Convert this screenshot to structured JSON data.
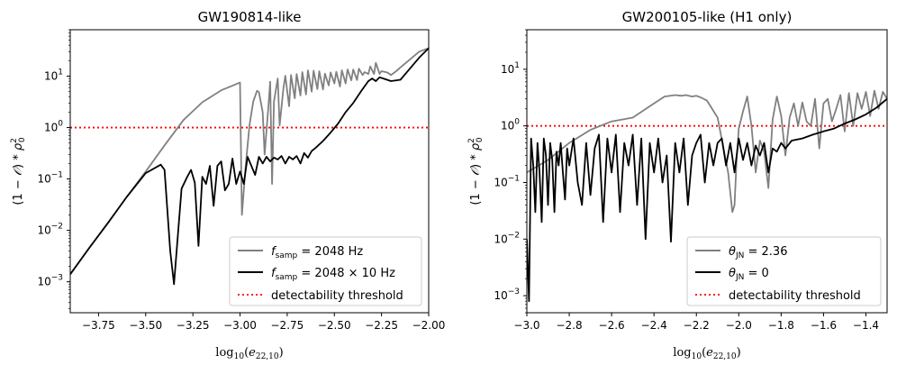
{
  "chart_data": [
    {
      "type": "line",
      "title": "GW190814-like",
      "xlabel": "log10(e22,10)",
      "ylabel": "(1 − 𝒪) * ρ0²",
      "yscale": "log",
      "xlim": [
        -3.9,
        -2.0
      ],
      "ylim": [
        0.00025,
        80
      ],
      "xticks": [
        -3.75,
        -3.5,
        -3.25,
        -3.0,
        -2.75,
        -2.5,
        -2.25,
        -2.0
      ],
      "xtick_labels": [
        "−3.75",
        "−3.50",
        "−3.25",
        "−3.00",
        "−2.75",
        "−2.50",
        "−2.25",
        "−2.00"
      ],
      "yticks_exp": [
        -3,
        -2,
        -1,
        0,
        1
      ],
      "threshold": 1,
      "legend_position": "lower-right",
      "legend": [
        {
          "label": "f_samp = 2048 Hz",
          "main": "f",
          "sub": "samp",
          "rest": " = 2048 Hz",
          "color": "#808080",
          "style": "solid"
        },
        {
          "label": "f_samp = 2048 × 10 Hz",
          "main": "f",
          "sub": "samp",
          "rest": " = 2048 × 10 Hz",
          "color": "#000000",
          "style": "solid"
        },
        {
          "label": "detectability threshold",
          "color": "#ff0000",
          "style": "dotted"
        }
      ],
      "series": [
        {
          "name": "f_samp = 2048 Hz",
          "color": "#808080",
          "x": [
            -3.9,
            -3.8,
            -3.7,
            -3.6,
            -3.5,
            -3.4,
            -3.3,
            -3.2,
            -3.1,
            -3.0,
            -2.99,
            -2.97,
            -2.95,
            -2.93,
            -2.91,
            -2.9,
            -2.88,
            -2.87,
            -2.85,
            -2.84,
            -2.83,
            -2.82,
            -2.8,
            -2.79,
            -2.77,
            -2.76,
            -2.74,
            -2.73,
            -2.71,
            -2.7,
            -2.68,
            -2.67,
            -2.65,
            -2.64,
            -2.62,
            -2.61,
            -2.59,
            -2.58,
            -2.56,
            -2.55,
            -2.53,
            -2.52,
            -2.5,
            -2.49,
            -2.47,
            -2.46,
            -2.44,
            -2.43,
            -2.41,
            -2.4,
            -2.38,
            -2.37,
            -2.35,
            -2.34,
            -2.32,
            -2.31,
            -2.29,
            -2.28,
            -2.26,
            -2.25,
            -2.22,
            -2.2,
            -2.17,
            -2.15,
            -2.1,
            -2.05,
            -2.0
          ],
          "y": [
            0.0014,
            0.0045,
            0.014,
            0.045,
            0.14,
            0.45,
            1.4,
            3.1,
            5.3,
            7.5,
            0.02,
            0.18,
            1.1,
            3.2,
            5.2,
            4.9,
            2.0,
            0.3,
            2.4,
            7.8,
            0.08,
            3.2,
            9.0,
            1.1,
            5.8,
            10.2,
            2.6,
            10.5,
            3.7,
            11.0,
            4.2,
            12.0,
            4.4,
            13.0,
            5.0,
            12.8,
            5.6,
            12.5,
            5.5,
            11.2,
            6.6,
            11.8,
            7.2,
            12.2,
            6.3,
            13.0,
            7.2,
            13.5,
            8.3,
            13.5,
            8.4,
            14.0,
            10.5,
            12.0,
            11.0,
            15.5,
            11.0,
            18.2,
            11.1,
            12.5,
            11.8,
            10.5,
            12.7,
            14.8,
            21.0,
            30.0,
            35.0
          ]
        },
        {
          "name": "f_samp = 2048 × 10 Hz",
          "color": "#000000",
          "x": [
            -3.9,
            -3.8,
            -3.7,
            -3.6,
            -3.5,
            -3.42,
            -3.4,
            -3.37,
            -3.35,
            -3.31,
            -3.28,
            -3.26,
            -3.24,
            -3.22,
            -3.2,
            -3.18,
            -3.16,
            -3.14,
            -3.12,
            -3.1,
            -3.08,
            -3.06,
            -3.04,
            -3.02,
            -3.0,
            -2.98,
            -2.96,
            -2.94,
            -2.92,
            -2.9,
            -2.88,
            -2.86,
            -2.84,
            -2.82,
            -2.8,
            -2.78,
            -2.76,
            -2.74,
            -2.72,
            -2.7,
            -2.68,
            -2.66,
            -2.64,
            -2.62,
            -2.6,
            -2.56,
            -2.52,
            -2.48,
            -2.44,
            -2.4,
            -2.36,
            -2.32,
            -2.3,
            -2.28,
            -2.26,
            -2.24,
            -2.2,
            -2.15,
            -2.1,
            -2.05,
            -2.0
          ],
          "y": [
            0.0014,
            0.0045,
            0.014,
            0.045,
            0.13,
            0.19,
            0.15,
            0.004,
            0.0009,
            0.065,
            0.11,
            0.15,
            0.085,
            0.005,
            0.11,
            0.08,
            0.18,
            0.03,
            0.18,
            0.22,
            0.06,
            0.08,
            0.25,
            0.08,
            0.14,
            0.08,
            0.27,
            0.18,
            0.12,
            0.27,
            0.2,
            0.27,
            0.22,
            0.26,
            0.24,
            0.28,
            0.2,
            0.27,
            0.24,
            0.28,
            0.2,
            0.32,
            0.26,
            0.35,
            0.4,
            0.55,
            0.8,
            1.2,
            2.0,
            3.0,
            5.0,
            8.0,
            9.0,
            8.0,
            9.5,
            9.0,
            8.0,
            8.5,
            14.0,
            23.0,
            35.0
          ]
        }
      ]
    },
    {
      "type": "line",
      "title": "GW200105-like (H1 only)",
      "xlabel": "log10(e22,10)",
      "ylabel": "(1 − 𝒪) * ρ0²",
      "yscale": "log",
      "xlim": [
        -3.0,
        -1.3
      ],
      "ylim": [
        0.0005,
        50
      ],
      "xticks": [
        -3.0,
        -2.8,
        -2.6,
        -2.4,
        -2.2,
        -2.0,
        -1.8,
        -1.6,
        -1.4
      ],
      "xtick_labels": [
        "−3.0",
        "−2.8",
        "−2.6",
        "−2.4",
        "−2.2",
        "−2.0",
        "−1.8",
        "−1.6",
        "−1.4"
      ],
      "yticks_exp": [
        -3,
        -2,
        -1,
        0,
        1
      ],
      "threshold": 1,
      "legend_position": "lower-right",
      "legend": [
        {
          "label": "θ_JN = 2.36",
          "main": "θ",
          "sub": "JN",
          "rest": " = 2.36",
          "color": "#808080",
          "style": "solid"
        },
        {
          "label": "θ_JN = 0",
          "main": "θ",
          "sub": "JN",
          "rest": " = 0",
          "color": "#000000",
          "style": "solid"
        },
        {
          "label": "detectability threshold",
          "color": "#ff0000",
          "style": "dotted"
        }
      ],
      "series": [
        {
          "name": "θ_JN = 2.36",
          "color": "#808080",
          "x": [
            -3.0,
            -2.9,
            -2.8,
            -2.7,
            -2.6,
            -2.5,
            -2.4,
            -2.35,
            -2.3,
            -2.27,
            -2.25,
            -2.22,
            -2.2,
            -2.18,
            -2.15,
            -2.1,
            -2.05,
            -2.03,
            -2.02,
            -2.01,
            -2.0,
            -1.98,
            -1.96,
            -1.94,
            -1.92,
            -1.9,
            -1.88,
            -1.86,
            -1.84,
            -1.82,
            -1.8,
            -1.78,
            -1.76,
            -1.74,
            -1.72,
            -1.7,
            -1.68,
            -1.66,
            -1.64,
            -1.62,
            -1.6,
            -1.58,
            -1.56,
            -1.54,
            -1.52,
            -1.5,
            -1.48,
            -1.46,
            -1.44,
            -1.42,
            -1.4,
            -1.38,
            -1.36,
            -1.34,
            -1.32,
            -1.3
          ],
          "y": [
            0.15,
            0.25,
            0.5,
            0.85,
            1.2,
            1.4,
            2.5,
            3.3,
            3.5,
            3.4,
            3.5,
            3.3,
            3.4,
            3.2,
            2.8,
            1.4,
            0.15,
            0.03,
            0.04,
            0.25,
            0.9,
            1.8,
            3.3,
            1.0,
            0.15,
            0.55,
            0.35,
            0.08,
            1.3,
            3.3,
            1.5,
            0.3,
            1.4,
            2.5,
            1.0,
            2.6,
            1.2,
            1.0,
            3.0,
            0.4,
            2.5,
            3.0,
            1.2,
            2.0,
            3.5,
            0.8,
            3.8,
            1.0,
            3.8,
            2.0,
            4.0,
            1.5,
            4.2,
            2.0,
            4.0,
            3.0
          ]
        },
        {
          "name": "θ_JN = 0",
          "color": "#000000",
          "x": [
            -3.0,
            -2.99,
            -2.98,
            -2.97,
            -2.96,
            -2.95,
            -2.94,
            -2.93,
            -2.92,
            -2.91,
            -2.9,
            -2.89,
            -2.88,
            -2.87,
            -2.86,
            -2.85,
            -2.84,
            -2.83,
            -2.82,
            -2.81,
            -2.8,
            -2.78,
            -2.76,
            -2.74,
            -2.72,
            -2.7,
            -2.68,
            -2.66,
            -2.64,
            -2.62,
            -2.6,
            -2.58,
            -2.56,
            -2.54,
            -2.52,
            -2.5,
            -2.48,
            -2.46,
            -2.44,
            -2.42,
            -2.4,
            -2.38,
            -2.36,
            -2.34,
            -2.32,
            -2.3,
            -2.28,
            -2.26,
            -2.24,
            -2.22,
            -2.2,
            -2.18,
            -2.16,
            -2.14,
            -2.12,
            -2.1,
            -2.08,
            -2.06,
            -2.04,
            -2.02,
            -2.0,
            -1.98,
            -1.96,
            -1.94,
            -1.92,
            -1.9,
            -1.88,
            -1.86,
            -1.84,
            -1.82,
            -1.8,
            -1.78,
            -1.75,
            -1.7,
            -1.65,
            -1.6,
            -1.55,
            -1.5,
            -1.45,
            -1.4,
            -1.35,
            -1.3
          ],
          "y": [
            0.01,
            0.0008,
            0.6,
            0.2,
            0.03,
            0.5,
            0.15,
            0.02,
            0.6,
            0.3,
            0.04,
            0.5,
            0.25,
            0.03,
            0.35,
            0.2,
            0.5,
            0.15,
            0.05,
            0.4,
            0.2,
            0.6,
            0.1,
            0.04,
            0.5,
            0.06,
            0.4,
            0.7,
            0.02,
            0.6,
            0.15,
            0.7,
            0.03,
            0.5,
            0.2,
            0.7,
            0.04,
            0.6,
            0.01,
            0.5,
            0.15,
            0.6,
            0.1,
            0.3,
            0.009,
            0.5,
            0.15,
            0.6,
            0.04,
            0.3,
            0.5,
            0.7,
            0.1,
            0.5,
            0.2,
            0.5,
            0.6,
            0.2,
            0.5,
            0.15,
            0.6,
            0.25,
            0.5,
            0.2,
            0.45,
            0.3,
            0.5,
            0.15,
            0.4,
            0.35,
            0.5,
            0.4,
            0.55,
            0.6,
            0.7,
            0.8,
            0.9,
            1.1,
            1.3,
            1.6,
            2.1,
            3.0
          ]
        }
      ]
    }
  ]
}
